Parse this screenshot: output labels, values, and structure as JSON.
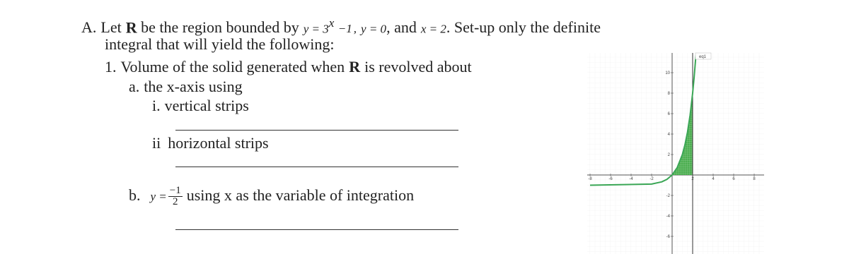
{
  "problem": {
    "label": "A.",
    "lead": "Let",
    "region": "R",
    "bounded": "be the region bounded by",
    "curve": {
      "lhs": "y = 3",
      "exponent": "x",
      "rhs": "−1"
    },
    "comma": ",",
    "line": "y = 0",
    "and": ", and",
    "bound": "x = 2",
    "instruction": ". Set-up only the definite",
    "instruction_cont": "integral  that will yield the following:"
  },
  "item1": {
    "label": "1.",
    "text": "Volume of the solid generated when",
    "region": "R",
    "text_end": "is revolved about"
  },
  "part_a": {
    "label": "a.",
    "text": "the x-axis using",
    "sub_i": {
      "label": "i.",
      "text": "vertical strips"
    },
    "sub_ii": {
      "label": "ii",
      "text": "horizontal strips"
    }
  },
  "part_b": {
    "label": "b.",
    "axis_lhs": "y =",
    "numerator": "−1",
    "denominator": "2",
    "text": "using x as the variable of integration"
  },
  "graph": {
    "legend": "eq1",
    "xticks": [
      -8,
      -6,
      -4,
      -2,
      2,
      4,
      6,
      8
    ],
    "yticks": [
      10,
      8,
      6,
      4,
      2,
      -2,
      -4,
      -6
    ]
  }
}
